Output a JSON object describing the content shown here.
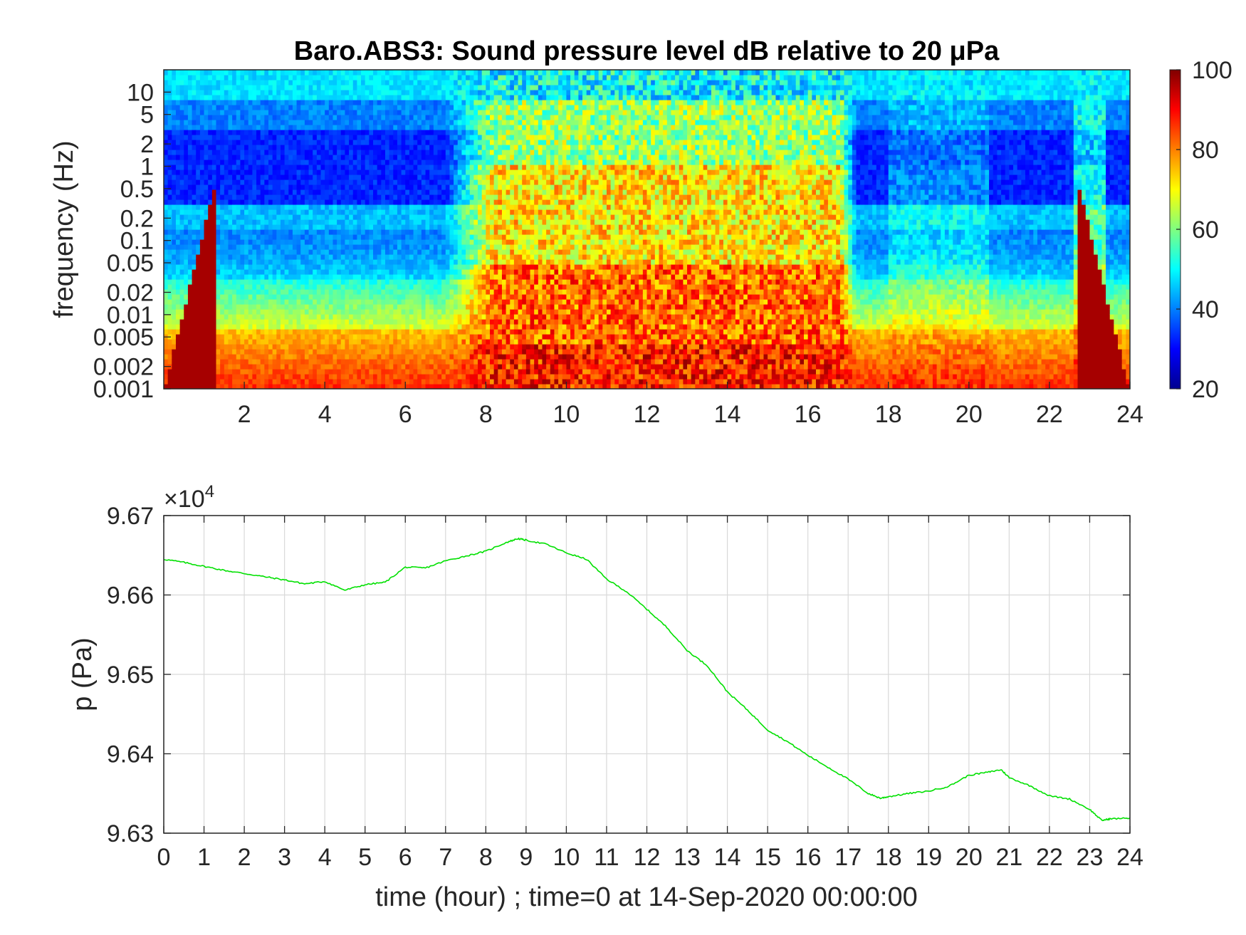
{
  "chart_data": [
    {
      "type": "heatmap",
      "title": "Baro.ABS3: Sound pressure level dB relative to 20 μPa",
      "ylabel": "frequency (Hz)",
      "xlabel": "",
      "xlim": [
        0,
        24
      ],
      "x_ticks": [
        2,
        4,
        6,
        8,
        10,
        12,
        14,
        16,
        18,
        20,
        22,
        24
      ],
      "y_scale": "log",
      "ylim": [
        0.001,
        20
      ],
      "y_ticks": [
        0.001,
        0.002,
        0.005,
        0.01,
        0.02,
        0.05,
        0.1,
        0.2,
        0.5,
        1,
        2,
        5,
        10
      ],
      "y_tick_labels": [
        "0.001",
        "0.002",
        "0.005",
        "0.01",
        "0.02",
        "0.05",
        "0.1",
        "0.2",
        "0.5",
        "1",
        "2",
        "5",
        "10"
      ],
      "colormap": "jet",
      "colorbar": {
        "range": [
          20,
          100
        ],
        "ticks": [
          20,
          40,
          60,
          80,
          100
        ]
      },
      "quiet_periods_hours": [
        [
          0,
          7
        ],
        [
          17,
          24
        ]
      ],
      "active_periods_hours": [
        [
          8,
          17
        ]
      ],
      "grid": false
    },
    {
      "type": "line",
      "xlabel": "time (hour) ; time=0 at 14-Sep-2020 00:00:00",
      "ylabel": "p (Pa)",
      "y_exponent_label": "×10",
      "y_exponent_power": "4",
      "xlim": [
        0,
        24
      ],
      "x_ticks": [
        0,
        1,
        2,
        3,
        4,
        5,
        6,
        7,
        8,
        9,
        10,
        11,
        12,
        13,
        14,
        15,
        16,
        17,
        18,
        19,
        20,
        21,
        22,
        23,
        24
      ],
      "ylim": [
        9.63,
        9.67
      ],
      "y_ticks": [
        "9.63",
        "9.64",
        "9.65",
        "9.66",
        "9.67"
      ],
      "grid": true,
      "series": [
        {
          "color": "#00e000",
          "x": [
            0,
            0.5,
            1,
            1.5,
            2,
            2.5,
            3,
            3.5,
            4,
            4.5,
            5,
            5.5,
            6,
            6.5,
            7,
            7.5,
            8,
            8.5,
            8.8,
            9,
            9.5,
            10,
            10.5,
            11,
            11.5,
            12,
            12.5,
            13,
            13.5,
            14,
            14.5,
            15,
            15.5,
            16,
            16.5,
            17,
            17.5,
            17.8,
            18,
            18.5,
            19,
            19.5,
            20,
            20.5,
            20.8,
            21,
            21.5,
            22,
            22.5,
            23,
            23.3,
            23.5,
            24
          ],
          "y": [
            9.6645,
            9.6641,
            9.6636,
            9.6631,
            9.6627,
            9.6623,
            9.6619,
            9.6614,
            9.6617,
            9.6606,
            9.6613,
            9.6616,
            9.6635,
            9.6634,
            9.6643,
            9.6649,
            9.6655,
            9.6666,
            9.6671,
            9.6669,
            9.6664,
            9.6653,
            9.6645,
            9.662,
            9.6604,
            9.6582,
            9.6559,
            9.653,
            9.6511,
            9.6478,
            9.6455,
            9.643,
            9.6415,
            9.6398,
            9.6383,
            9.6368,
            9.635,
            9.6344,
            9.6346,
            9.635,
            9.6353,
            9.6359,
            9.6373,
            9.6377,
            9.638,
            9.637,
            9.636,
            9.6347,
            9.6343,
            9.633,
            9.6316,
            9.6318,
            9.6319
          ]
        }
      ]
    }
  ]
}
